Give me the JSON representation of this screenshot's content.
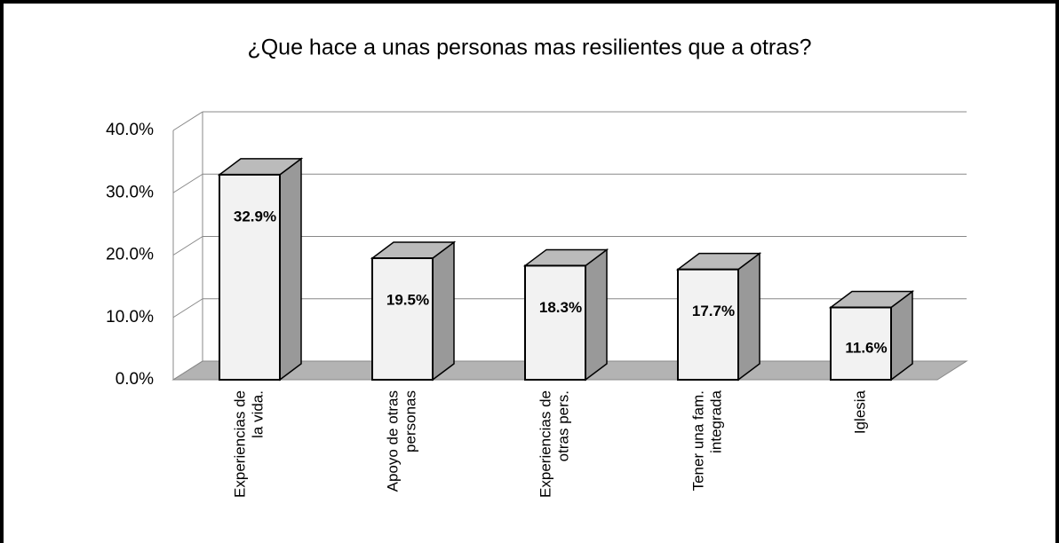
{
  "chart_data": {
    "type": "bar3d",
    "title": "¿Que hace a unas personas mas resilientes que a otras?",
    "categories": [
      [
        "Experiencias de",
        "la vida."
      ],
      [
        "Apoyo de otras",
        "personas"
      ],
      [
        "Experiencias de",
        "otras pers."
      ],
      [
        "Tener una fam.",
        "integrada"
      ],
      [
        "Iglesia"
      ]
    ],
    "values": [
      32.9,
      19.5,
      18.3,
      17.7,
      11.6
    ],
    "value_labels": [
      "32.9%",
      "19.5%",
      "18.3%",
      "17.7%",
      "11.6%"
    ],
    "color": "#f2f2f2",
    "ylim": [
      0,
      40
    ],
    "yticks": [
      {
        "value": 0,
        "label": "0.0%"
      },
      {
        "value": 10,
        "label": "10.0%"
      },
      {
        "value": 20,
        "label": "20.0%"
      },
      {
        "value": 30,
        "label": "30.0%"
      },
      {
        "value": 40,
        "label": "40.0%"
      }
    ],
    "grid": true
  }
}
